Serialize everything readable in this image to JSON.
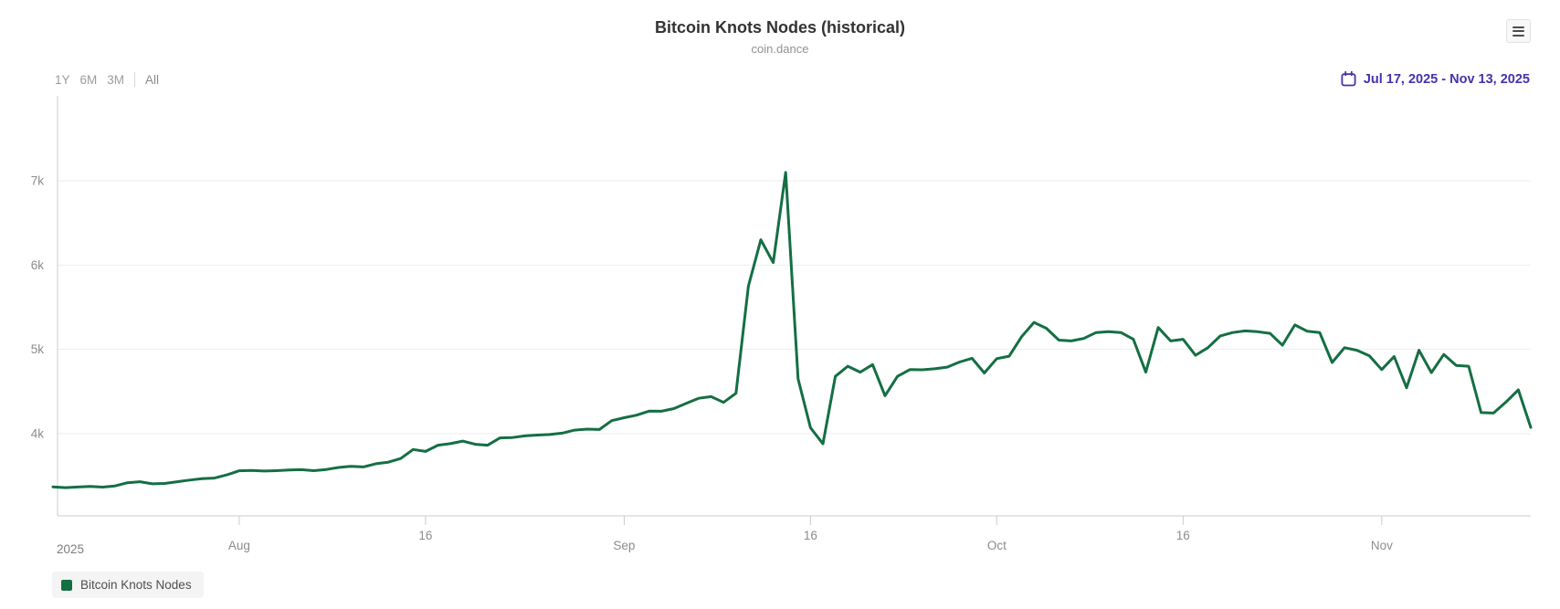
{
  "header": {
    "title": "Bitcoin Knots Nodes (historical)",
    "subtitle": "coin.dance"
  },
  "range_selector": {
    "buttons": [
      "1Y",
      "6M",
      "3M"
    ],
    "all_label": "All"
  },
  "date_range": {
    "text": "Jul 17, 2025 - Nov 13, 2025",
    "accent_color": "#4433ad"
  },
  "chart_data": {
    "type": "line",
    "title": "Bitcoin Knots Nodes (historical)",
    "subtitle": "coin.dance",
    "x_start_date": "2025-07-17",
    "x_end_date": "2025-11-13",
    "interval": "daily",
    "grid": "horizontal",
    "legend_position": "bottom-left",
    "ylim": [
      3000,
      7950
    ],
    "yticks": [
      {
        "label": "4k",
        "value": 4000
      },
      {
        "label": "5k",
        "value": 5000
      },
      {
        "label": "6k",
        "value": 6000
      },
      {
        "label": "7k",
        "value": 7000
      }
    ],
    "xticks": [
      {
        "label": "Aug",
        "day": 15
      },
      {
        "label": "16",
        "day": 30
      },
      {
        "label": "Sep",
        "day": 46
      },
      {
        "label": "16",
        "day": 61
      },
      {
        "label": "Oct",
        "day": 76
      },
      {
        "label": "16",
        "day": 91
      },
      {
        "label": "Nov",
        "day": 107
      }
    ],
    "year_label": "2025",
    "series": [
      {
        "name": "Bitcoin Knots Nodes",
        "color": "#146f43",
        "values": [
          3370,
          3360,
          3368,
          3374,
          3366,
          3380,
          3418,
          3430,
          3405,
          3410,
          3430,
          3450,
          3466,
          3474,
          3512,
          3560,
          3563,
          3557,
          3561,
          3569,
          3573,
          3561,
          3575,
          3599,
          3613,
          3606,
          3644,
          3662,
          3705,
          3813,
          3790,
          3864,
          3882,
          3912,
          3874,
          3864,
          3950,
          3954,
          3974,
          3984,
          3990,
          4007,
          4042,
          4054,
          4050,
          4155,
          4190,
          4220,
          4268,
          4266,
          4298,
          4360,
          4420,
          4440,
          4372,
          4480,
          5750,
          6300,
          6030,
          7100,
          4650,
          4070,
          3880,
          4680,
          4800,
          4730,
          4820,
          4450,
          4680,
          4760,
          4758,
          4770,
          4790,
          4850,
          4895,
          4720,
          4890,
          4920,
          5150,
          5320,
          5250,
          5110,
          5100,
          5130,
          5200,
          5210,
          5200,
          5120,
          4730,
          5260,
          5100,
          5120,
          4930,
          5020,
          5160,
          5200,
          5220,
          5210,
          5190,
          5050,
          5290,
          5215,
          5200,
          4845,
          5020,
          4990,
          4925,
          4760,
          4915,
          4545,
          4990,
          4725,
          4940,
          4810,
          4800,
          4250,
          4245,
          4375,
          4520,
          4075
        ]
      }
    ]
  },
  "legend": {
    "items": [
      {
        "label": "Bitcoin Knots Nodes",
        "color": "#146f43"
      }
    ]
  }
}
